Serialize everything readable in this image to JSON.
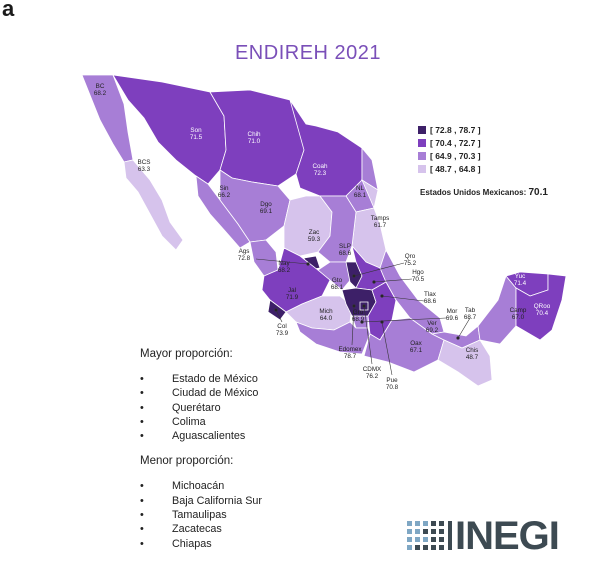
{
  "panel_letter": "a",
  "title": "ENDIREH 2021",
  "legend": [
    {
      "label": "[ 72.8 , 78.7 ]",
      "color": "#3d2068"
    },
    {
      "label": "[ 70.4 , 72.7 ]",
      "color": "#7e3fbe"
    },
    {
      "label": "[ 64.9 , 70.3 ]",
      "color": "#a77ed6"
    },
    {
      "label": "[ 48.7 , 64.8 ]",
      "color": "#d6c3ec"
    }
  ],
  "national": {
    "label": "Estados Unidos Mexicanos:",
    "value": "70.1"
  },
  "states": [
    {
      "abbr": "BC",
      "value": "68.2"
    },
    {
      "abbr": "Son",
      "value": "71.5"
    },
    {
      "abbr": "Chih",
      "value": "71.0"
    },
    {
      "abbr": "BCS",
      "value": "63.3"
    },
    {
      "abbr": "Coah",
      "value": "72.3"
    },
    {
      "abbr": "Sin",
      "value": "66.2"
    },
    {
      "abbr": "Dgo",
      "value": "69.1"
    },
    {
      "abbr": "NL",
      "value": "68.1"
    },
    {
      "abbr": "Zac",
      "value": "59.3"
    },
    {
      "abbr": "Tamps",
      "value": "61.7"
    },
    {
      "abbr": "SLP",
      "value": "68.6"
    },
    {
      "abbr": "Ags",
      "value": "72.8"
    },
    {
      "abbr": "Nay",
      "value": "68.2"
    },
    {
      "abbr": "Jal",
      "value": "71.9"
    },
    {
      "abbr": "Gto",
      "value": "68.1"
    },
    {
      "abbr": "Qro",
      "value": "75.2"
    },
    {
      "abbr": "Hgo",
      "value": "70.5"
    },
    {
      "abbr": "Tlax",
      "value": "68.6"
    },
    {
      "abbr": "Mor",
      "value": "69.6"
    },
    {
      "abbr": "Mich",
      "value": "64.0"
    },
    {
      "abbr": "Col",
      "value": "73.9"
    },
    {
      "abbr": "Edomex",
      "value": "78.7"
    },
    {
      "abbr": "Gro",
      "value": "68.9"
    },
    {
      "abbr": "CDMX",
      "value": "76.2"
    },
    {
      "abbr": "Pue",
      "value": "70.8"
    },
    {
      "abbr": "Ver",
      "value": "69.2"
    },
    {
      "abbr": "Oax",
      "value": "67.1"
    },
    {
      "abbr": "Tab",
      "value": "68.7"
    },
    {
      "abbr": "Camp",
      "value": "67.0"
    },
    {
      "abbr": "Yuc",
      "value": "71.4"
    },
    {
      "abbr": "QRoo",
      "value": "70.4"
    },
    {
      "abbr": "Chis",
      "value": "48.7"
    }
  ],
  "mayor": {
    "heading": "Mayor proporción:",
    "items": [
      "Estado de México",
      "Ciudad de México",
      "Querétaro",
      "Colima",
      "Aguascalientes"
    ]
  },
  "menor": {
    "heading": "Menor proporción:",
    "items": [
      "Michoacán",
      "Baja California Sur",
      "Tamaulipas",
      "Zacatecas",
      "Chiapas"
    ]
  },
  "logo": {
    "text": "INEGI",
    "color": "#3d4a52"
  }
}
